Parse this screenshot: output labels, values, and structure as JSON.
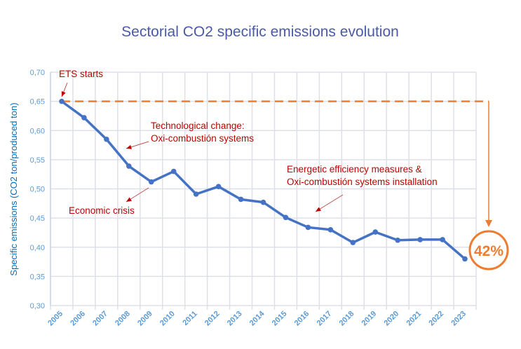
{
  "chart_data": {
    "type": "line",
    "title": "Sectorial CO2 specific emissions evolution",
    "ylabel": "Specific emissions  (CO2 ton/produced  ton)",
    "xlabel": "",
    "ylim": [
      0.3,
      0.7
    ],
    "grid": true,
    "yticks": [
      "0,30",
      "0,35",
      "0,40",
      "0,45",
      "0,50",
      "0,55",
      "0,60",
      "0,65",
      "0,70"
    ],
    "categories": [
      "2005",
      "2006",
      "2007",
      "2008",
      "2009",
      "2010",
      "2011",
      "2012",
      "2013",
      "2014",
      "2015",
      "2016",
      "2017",
      "2018",
      "2019",
      "2020",
      "2021",
      "2022",
      "2023"
    ],
    "values": [
      0.65,
      0.622,
      0.585,
      0.539,
      0.512,
      0.53,
      0.491,
      0.504,
      0.482,
      0.477,
      0.451,
      0.434,
      0.43,
      0.408,
      0.426,
      0.412,
      0.413,
      0.413,
      0.38
    ],
    "reference_line": {
      "value": 0.65
    },
    "reduction_badge": "42%",
    "annotations": [
      {
        "text": [
          "ETS starts"
        ],
        "year": "2005"
      },
      {
        "text": [
          "Technological change:",
          "Oxi-combustión systems"
        ],
        "year": "2007"
      },
      {
        "text": [
          "Economic crisis"
        ],
        "year": "2008"
      },
      {
        "text": [
          "Energetic efficiency measures &",
          "Oxi-combustión systems installation"
        ],
        "year": "2016"
      }
    ],
    "colors": {
      "line": "#4472c4",
      "reference": "#ed7d31",
      "annotation": "#c00000",
      "axis_text": "#5b9bd5",
      "title": "#4a5aa8",
      "grid": "#dde0e8"
    }
  }
}
